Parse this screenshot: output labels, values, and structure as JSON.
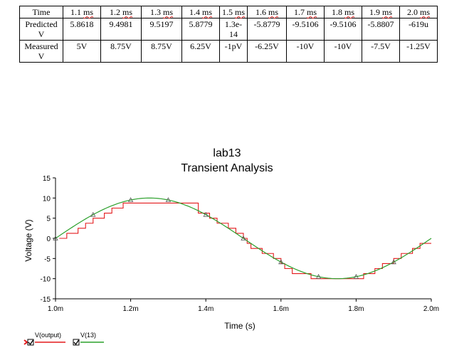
{
  "table": {
    "header": [
      "Time",
      "1.1 ms",
      "1.2 ms",
      "1.3 ms",
      "1.4 ms",
      "1.5 ms",
      "1.6 ms",
      "1.7 ms",
      "1.8 ms",
      "1.9 ms",
      "2.0 ms"
    ],
    "rows": [
      [
        "Predicted V",
        "5.8618",
        "9.4981",
        "9.5197",
        "5.8779",
        "1.3e-14",
        "-5.8779",
        "-9.5106",
        "-9.5106",
        "-5.8807",
        "-619u"
      ],
      [
        "Measured V",
        "5V",
        "8.75V",
        "8.75V",
        "6.25V",
        "-1pV",
        "-6.25V",
        "-10V",
        "-10V",
        "-7.5V",
        "-1.25V"
      ]
    ]
  },
  "chart_data": {
    "type": "line",
    "title": "lab13",
    "subtitle": "Transient Analysis",
    "xlabel": "Time (s)",
    "ylabel": "Voltage (V)",
    "xlim": [
      0.001,
      0.002
    ],
    "ylim": [
      -15,
      15
    ],
    "x_ticks": [
      0.001,
      0.0012,
      0.0014,
      0.0016,
      0.0018,
      0.002
    ],
    "x_tick_labels": [
      "1.0m",
      "1.2m",
      "1.4m",
      "1.6m",
      "1.8m",
      "2.0m"
    ],
    "y_ticks": [
      15,
      10,
      5,
      0,
      -5,
      -10,
      -15
    ],
    "y_tick_labels": [
      "15",
      "10",
      "5",
      "0",
      "-5",
      "-10",
      "-15"
    ],
    "series": [
      {
        "name": "V(output)",
        "color": "#e41a1c",
        "style": "step",
        "x": [
          0.00101,
          0.00103,
          0.00106,
          0.00108,
          0.0011,
          0.00113,
          0.00115,
          0.00118,
          0.0012,
          0.0013,
          0.00138,
          0.00141,
          0.00143,
          0.00146,
          0.00148,
          0.0015,
          0.00151,
          0.00152,
          0.00155,
          0.00158,
          0.0016,
          0.00161,
          0.00163,
          0.00166,
          0.00168,
          0.00178,
          0.00182,
          0.00185,
          0.00187,
          0.0019,
          0.00192,
          0.00195,
          0.00197,
          0.00199
        ],
        "values": [
          0,
          1.25,
          2.5,
          3.75,
          5,
          6.25,
          7.5,
          8.75,
          8.75,
          8.75,
          6.25,
          5,
          3.75,
          2.5,
          1.25,
          0,
          -1.25,
          -2.5,
          -3.75,
          -5,
          -6.25,
          -7.5,
          -8.75,
          -8.75,
          -10,
          -10,
          -8.75,
          -7.5,
          -6.25,
          -5,
          -3.75,
          -2.5,
          -1.25,
          -1.25
        ]
      },
      {
        "name": "V(13)",
        "color": "#2ca02c",
        "style": "sine",
        "amplitude": 10,
        "period": 0.001,
        "phase_zero": 0.001
      }
    ],
    "legend": "bottom-left",
    "grid": false
  },
  "legend": {
    "items": [
      {
        "label": "V(output)",
        "color": "#e41a1c"
      },
      {
        "label": "V(13)",
        "color": "#2ca02c"
      }
    ]
  }
}
